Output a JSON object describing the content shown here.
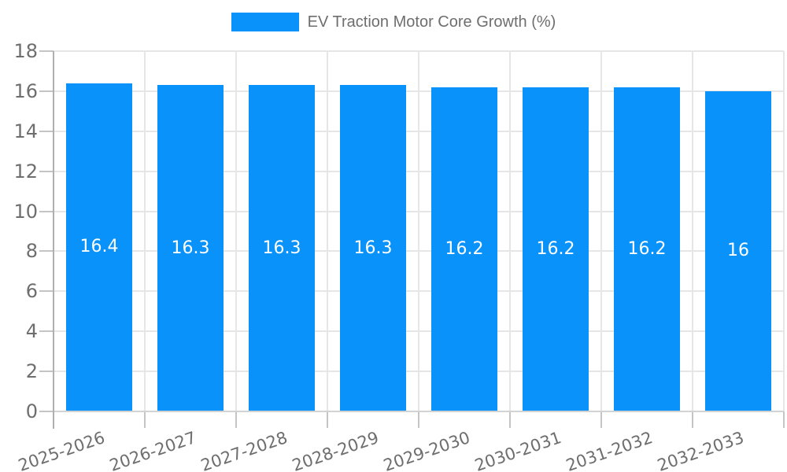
{
  "legend": {
    "label": "EV Traction Motor Core Growth (%)",
    "swatch_color": "#0992f9"
  },
  "chart_data": {
    "type": "bar",
    "title": "EV Traction Motor Core Growth (%)",
    "categories": [
      "2025-2026",
      "2026-2027",
      "2027-2028",
      "2028-2029",
      "2029-2030",
      "2030-2031",
      "2031-2032",
      "2032-2033"
    ],
    "values": [
      16.4,
      16.3,
      16.3,
      16.3,
      16.2,
      16.2,
      16.2,
      16
    ],
    "bar_labels": [
      "16.4",
      "16.3",
      "16.3",
      "16.3",
      "16.2",
      "16.2",
      "16.2",
      "16"
    ],
    "ylim": [
      0,
      18
    ],
    "ytick_step": 2,
    "ytick_labels": [
      "0",
      "2",
      "4",
      "6",
      "8",
      "10",
      "12",
      "14",
      "16",
      "18"
    ],
    "xlabel": "",
    "ylabel": "",
    "grid": true,
    "legend_position": "top",
    "bar_color": "#0992f9",
    "value_label_color": "#ffffff",
    "axis_text_color": "#6e6e6e",
    "grid_color": "#e6e6e6",
    "baseline_color": "#d2d2d2",
    "axis_line_color": "#b0b0b0",
    "tick_color": "#c4c4c4"
  }
}
